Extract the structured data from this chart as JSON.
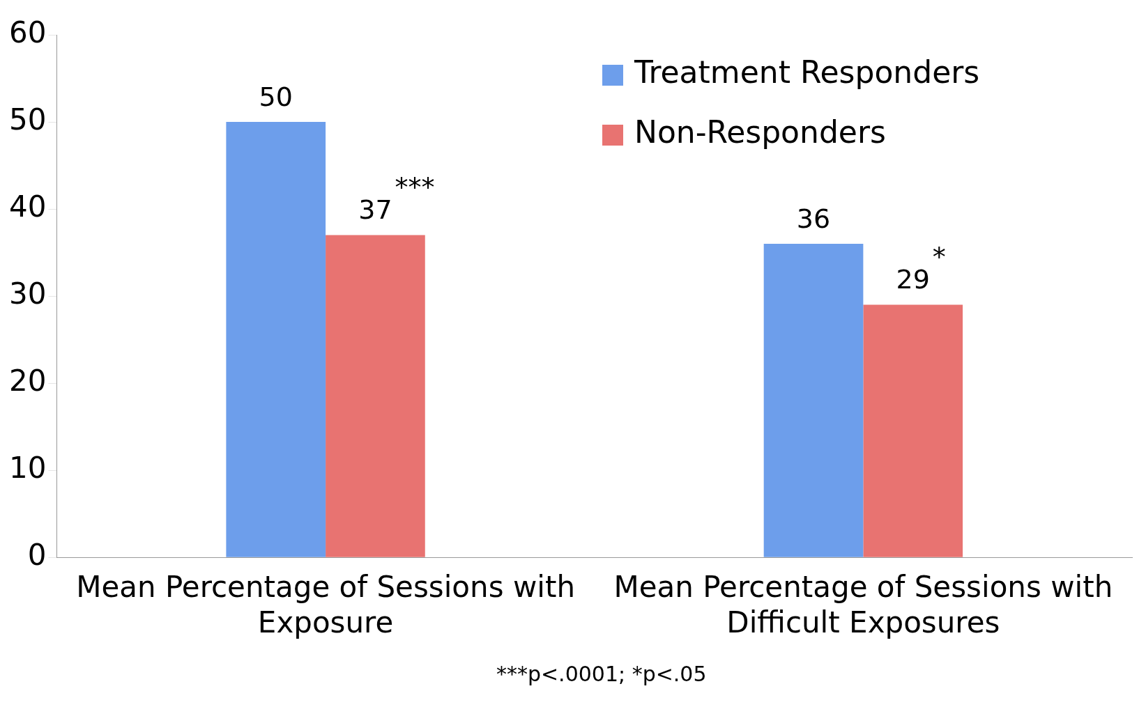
{
  "chart_data": {
    "type": "bar",
    "categories": [
      "Mean Percentage of Sessions with Exposure",
      "Mean Percentage of Sessions with Difficult Exposures"
    ],
    "series": [
      {
        "name": "Treatment Responders",
        "color": "#6d9eeb",
        "values": [
          50,
          36
        ]
      },
      {
        "name": "Non-Responders",
        "color": "#e87371",
        "values": [
          37,
          29
        ]
      }
    ],
    "ylim": [
      0,
      60
    ],
    "yticks": [
      0,
      10,
      20,
      30,
      40,
      50,
      60
    ],
    "grid": false,
    "legend": "top right",
    "data_labels": true,
    "annotations": [
      "***",
      "*",
      "***p<.0001; *p<.05"
    ]
  }
}
